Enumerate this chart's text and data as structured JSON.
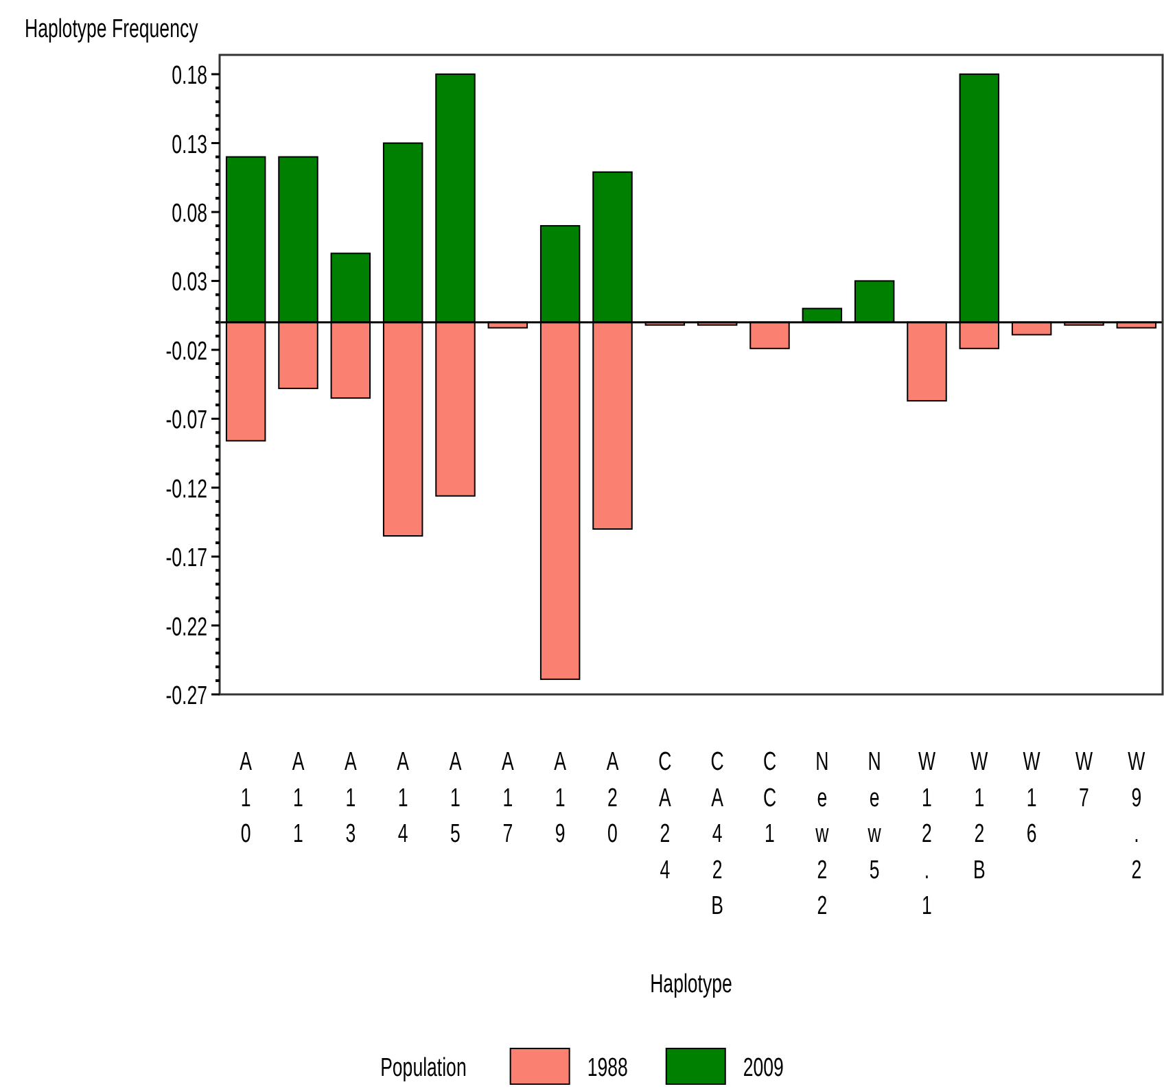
{
  "chart_data": {
    "type": "bar",
    "stacked": true,
    "xlabel": "Haplotype",
    "ylabel": "Haplotype Frequency",
    "legend_title": "Population",
    "legend": "bottom",
    "grid": false,
    "categories": [
      "A10",
      "A11",
      "A13",
      "A14",
      "A15",
      "A17",
      "A19",
      "A20",
      "CA24",
      "CA42B",
      "CC1",
      "New22",
      "New5",
      "W12.1",
      "W12B",
      "W16",
      "W7",
      "W9.2"
    ],
    "series": [
      {
        "name": "1988",
        "color": "#fa8072",
        "values": [
          -0.086,
          -0.048,
          -0.055,
          -0.155,
          -0.126,
          -0.004,
          -0.259,
          -0.15,
          -0.002,
          -0.002,
          -0.019,
          null,
          null,
          -0.057,
          -0.019,
          -0.009,
          -0.002,
          -0.004
        ]
      },
      {
        "name": "2009",
        "color": "#008000",
        "values": [
          0.12,
          0.12,
          0.05,
          0.13,
          0.18,
          null,
          0.07,
          0.109,
          null,
          null,
          null,
          0.01,
          0.03,
          null,
          0.18,
          null,
          null,
          null
        ]
      }
    ],
    "ref_lines": [
      {
        "axis": "y",
        "value": 0,
        "color": "#000000"
      }
    ],
    "ylim": [
      -0.27,
      0.194
    ],
    "yticks": [
      -0.27,
      {
        "value": -0.26,
        "label": null
      },
      {
        "value": -0.25,
        "label": null
      },
      {
        "value": -0.24,
        "label": null
      },
      {
        "value": -0.23,
        "label": null
      },
      -0.22,
      {
        "value": -0.21,
        "label": null
      },
      {
        "value": -0.2,
        "label": null
      },
      {
        "value": -0.19,
        "label": null
      },
      {
        "value": -0.18,
        "label": null
      },
      -0.17,
      {
        "value": -0.16,
        "label": null
      },
      {
        "value": -0.15,
        "label": null
      },
      {
        "value": -0.14,
        "label": null
      },
      {
        "value": -0.13,
        "label": null
      },
      -0.12,
      {
        "value": -0.11,
        "label": null
      },
      {
        "value": -0.1,
        "label": null
      },
      {
        "value": -0.09,
        "label": null
      },
      {
        "value": -0.08,
        "label": null
      },
      -0.07,
      {
        "value": -0.06,
        "label": null
      },
      {
        "value": -0.05,
        "label": null
      },
      {
        "value": -0.04,
        "label": null
      },
      {
        "value": -0.03,
        "label": null
      },
      -0.02,
      {
        "value": -0.01,
        "label": null
      },
      {
        "value": 0,
        "label": null
      },
      {
        "value": 0.01,
        "label": null
      },
      {
        "value": 0.02,
        "label": null
      },
      0.03,
      {
        "value": 0.04,
        "label": null
      },
      {
        "value": 0.05,
        "label": null
      },
      {
        "value": 0.06,
        "label": null
      },
      {
        "value": 0.07,
        "label": null
      },
      0.08,
      {
        "value": 0.09,
        "label": null
      },
      {
        "value": 0.1,
        "label": null
      },
      {
        "value": 0.11,
        "label": null
      },
      {
        "value": 0.12,
        "label": null
      },
      0.13,
      {
        "value": 0.14,
        "label": null
      },
      {
        "value": 0.15,
        "label": null
      },
      {
        "value": 0.16,
        "label": null
      },
      {
        "value": 0.17,
        "label": null
      },
      0.18
    ]
  }
}
